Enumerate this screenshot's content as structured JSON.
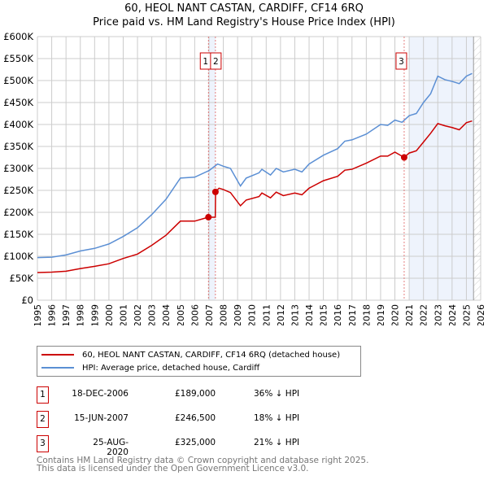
{
  "chart_data": {
    "type": "line",
    "title": "60, HEOL NANT CASTAN, CARDIFF, CF14 6RQ",
    "subtitle": "Price paid vs. HM Land Registry's House Price Index (HPI)",
    "xlim": [
      1995,
      2026
    ],
    "ylim": [
      0,
      600000
    ],
    "grid": true,
    "y_ticks": [
      0,
      50000,
      100000,
      150000,
      200000,
      250000,
      300000,
      350000,
      400000,
      450000,
      500000,
      550000,
      600000
    ],
    "y_tick_labels": [
      "£0",
      "£50K",
      "£100K",
      "£150K",
      "£200K",
      "£250K",
      "£300K",
      "£350K",
      "£400K",
      "£450K",
      "£500K",
      "£550K",
      "£600K"
    ],
    "x_ticks": [
      1995,
      1996,
      1997,
      1998,
      1999,
      2000,
      2001,
      2002,
      2003,
      2004,
      2005,
      2006,
      2007,
      2008,
      2009,
      2010,
      2011,
      2012,
      2013,
      2014,
      2015,
      2016,
      2017,
      2018,
      2019,
      2020,
      2021,
      2022,
      2023,
      2024,
      2025,
      2026
    ],
    "x_tick_labels": [
      "1995",
      "1996",
      "1997",
      "1998",
      "1999",
      "2000",
      "2001",
      "2002",
      "2003",
      "2004",
      "2005",
      "2006",
      "2007",
      "2008",
      "2009",
      "2010",
      "2011",
      "2012",
      "2013",
      "2014",
      "2015",
      "2016",
      "2017",
      "2018",
      "2019",
      "2020",
      "2021",
      "2022",
      "2023",
      "2024",
      "2025",
      "2026"
    ],
    "shaded_ranges": [
      [
        2006.96,
        2007.45
      ],
      [
        2021.0,
        2025.5
      ]
    ],
    "hatched_from": 2025.5,
    "series": [
      {
        "name": "60, HEOL NANT CASTAN, CARDIFF, CF14 6RQ (detached house)",
        "color": "#cc0000",
        "x": [
          1995,
          1996,
          1997,
          1998,
          1999,
          2000,
          2001,
          2002,
          2003,
          2004,
          2005,
          2006,
          2006.96,
          2007.44,
          2007.46,
          2007.7,
          2008,
          2008.5,
          2009.2,
          2009.6,
          2010.5,
          2010.7,
          2011.3,
          2011.7,
          2012.2,
          2013,
          2013.5,
          2014,
          2015,
          2016,
          2016.5,
          2017,
          2018,
          2019,
          2019.5,
          2020,
          2020.65,
          2021,
          2021.5,
          2022,
          2022.5,
          2023,
          2023.5,
          2024,
          2024.5,
          2025,
          2025.4
        ],
        "y": [
          63000,
          64000,
          66000,
          72000,
          77000,
          83000,
          95000,
          105000,
          125000,
          148000,
          180000,
          180000,
          189000,
          189000,
          246500,
          255000,
          252000,
          245000,
          215000,
          228000,
          236000,
          244000,
          233000,
          246000,
          238000,
          244000,
          240000,
          255000,
          272000,
          282000,
          296000,
          298000,
          312000,
          328000,
          328000,
          337000,
          325000,
          335000,
          340000,
          360000,
          380000,
          402000,
          397000,
          393000,
          388000,
          404000,
          408000
        ]
      },
      {
        "name": "HPI: Average price, detached house, Cardiff",
        "color": "#5b8fd4",
        "x": [
          1995,
          1996,
          1997,
          1998,
          1999,
          2000,
          2001,
          2002,
          2003,
          2004,
          2005,
          2006,
          2007,
          2007.6,
          2008,
          2008.5,
          2009.2,
          2009.6,
          2010.5,
          2010.7,
          2011.3,
          2011.7,
          2012.2,
          2013,
          2013.5,
          2014,
          2015,
          2016,
          2016.5,
          2017,
          2018,
          2019,
          2019.5,
          2020,
          2020.5,
          2021,
          2021.5,
          2022,
          2022.5,
          2023,
          2023.5,
          2024,
          2024.5,
          2025,
          2025.4
        ],
        "y": [
          97000,
          98000,
          103000,
          112000,
          118000,
          128000,
          145000,
          165000,
          195000,
          230000,
          278000,
          280000,
          295000,
          310000,
          305000,
          300000,
          260000,
          278000,
          290000,
          298000,
          285000,
          300000,
          292000,
          298000,
          292000,
          310000,
          330000,
          345000,
          362000,
          365000,
          378000,
          400000,
          398000,
          410000,
          405000,
          420000,
          425000,
          450000,
          470000,
          510000,
          502000,
          498000,
          493000,
          510000,
          516000
        ]
      }
    ],
    "transactions": [
      {
        "label": "1",
        "date": "18-DEC-2006",
        "x": 2006.96,
        "price": "£189,000",
        "value": 189000,
        "hpi": "36% ↓ HPI"
      },
      {
        "label": "2",
        "date": "15-JUN-2007",
        "x": 2007.45,
        "price": "£246,500",
        "value": 246500,
        "hpi": "18% ↓ HPI"
      },
      {
        "label": "3",
        "date": "25-AUG-2020",
        "x": 2020.65,
        "price": "£325,000",
        "value": 325000,
        "hpi": "21% ↓ HPI"
      }
    ]
  },
  "footer": {
    "line1": "Contains HM Land Registry data © Crown copyright and database right 2025.",
    "line2": "This data is licensed under the Open Government Licence v3.0."
  }
}
